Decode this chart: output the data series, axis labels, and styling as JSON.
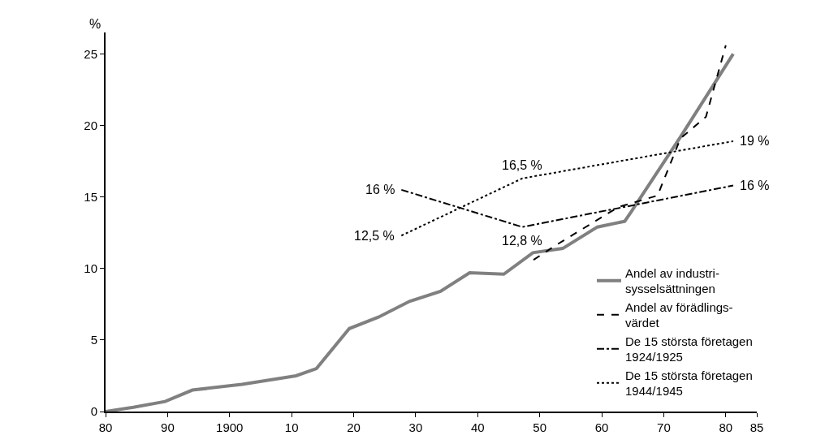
{
  "chart_data": {
    "type": "line",
    "ylabel": "%",
    "xlim": [
      1880,
      1985
    ],
    "xticks": [
      {
        "value": 1880,
        "label": "80"
      },
      {
        "value": 1890,
        "label": "90"
      },
      1900,
      {
        "value": 1910,
        "label": "10"
      },
      {
        "value": 1920,
        "label": "20"
      },
      {
        "value": 1930,
        "label": "30"
      },
      {
        "value": 1940,
        "label": "40"
      },
      {
        "value": 1950,
        "label": "50"
      },
      {
        "value": 1960,
        "label": "60"
      },
      {
        "value": 1970,
        "label": "70"
      },
      {
        "value": 1980,
        "label": "80"
      },
      {
        "value": 1985,
        "label": "85"
      }
    ],
    "ylim": [
      0,
      26.5
    ],
    "yticks": [
      0,
      5,
      10,
      15,
      20,
      25
    ],
    "legend": "bottom right",
    "series": [
      {
        "name": "Andel av industri-\nsysselsättningen",
        "color": "#808080",
        "line_style": "solid",
        "x": [
          1880,
          1884.5,
          1889.6,
          1894,
          1902,
          1910.7,
          1914,
          1919.3,
          1924,
          1929,
          1934,
          1938.7,
          1944.2,
          1948.9,
          1953.7,
          1959.3,
          1963.7,
          1964.8,
          1972.7,
          1981.2
        ],
        "values": [
          0,
          0.3,
          0.7,
          1.5,
          1.9,
          2.5,
          3.0,
          5.8,
          6.6,
          7.7,
          8.4,
          9.7,
          9.6,
          11.1,
          11.4,
          12.9,
          13.3,
          14.0,
          19.2,
          25.0
        ]
      },
      {
        "name": "Andel av förädlings-\nvärdet",
        "color": "#000000",
        "line_style": "dashed",
        "x": [
          1949,
          1952.5,
          1962.7,
          1969,
          1972.7,
          1976.8,
          1980
        ],
        "values": [
          10.6,
          11.6,
          14.3,
          15.1,
          19.1,
          20.6,
          25.6
        ]
      },
      {
        "name": "De 15 största företagen\n1924/1925",
        "color": "#000000",
        "line_style": "dashdot",
        "x": [
          1927.7,
          1947.2,
          1981.2
        ],
        "values": [
          15.5,
          12.9,
          15.8
        ]
      },
      {
        "name": "De 15 största företagen\n1944/1945",
        "color": "#000000",
        "line_style": "dotted",
        "x": [
          1927.7,
          1947.2,
          1981.2
        ],
        "values": [
          12.3,
          16.3,
          18.9
        ]
      }
    ],
    "annotations": [
      {
        "text": "16 %",
        "x": 1927.7,
        "y": 15.5
      },
      {
        "text": "12,5 %",
        "x": 1927.7,
        "y": 12.3
      },
      {
        "text": "16,5 %",
        "x": 1947.2,
        "y": 16.3
      },
      {
        "text": "12,8 %",
        "x": 1947.2,
        "y": 12.9
      },
      {
        "text": "19 %",
        "x": 1981.2,
        "y": 18.9
      },
      {
        "text": "16 %",
        "x": 1981.2,
        "y": 15.8
      }
    ]
  }
}
